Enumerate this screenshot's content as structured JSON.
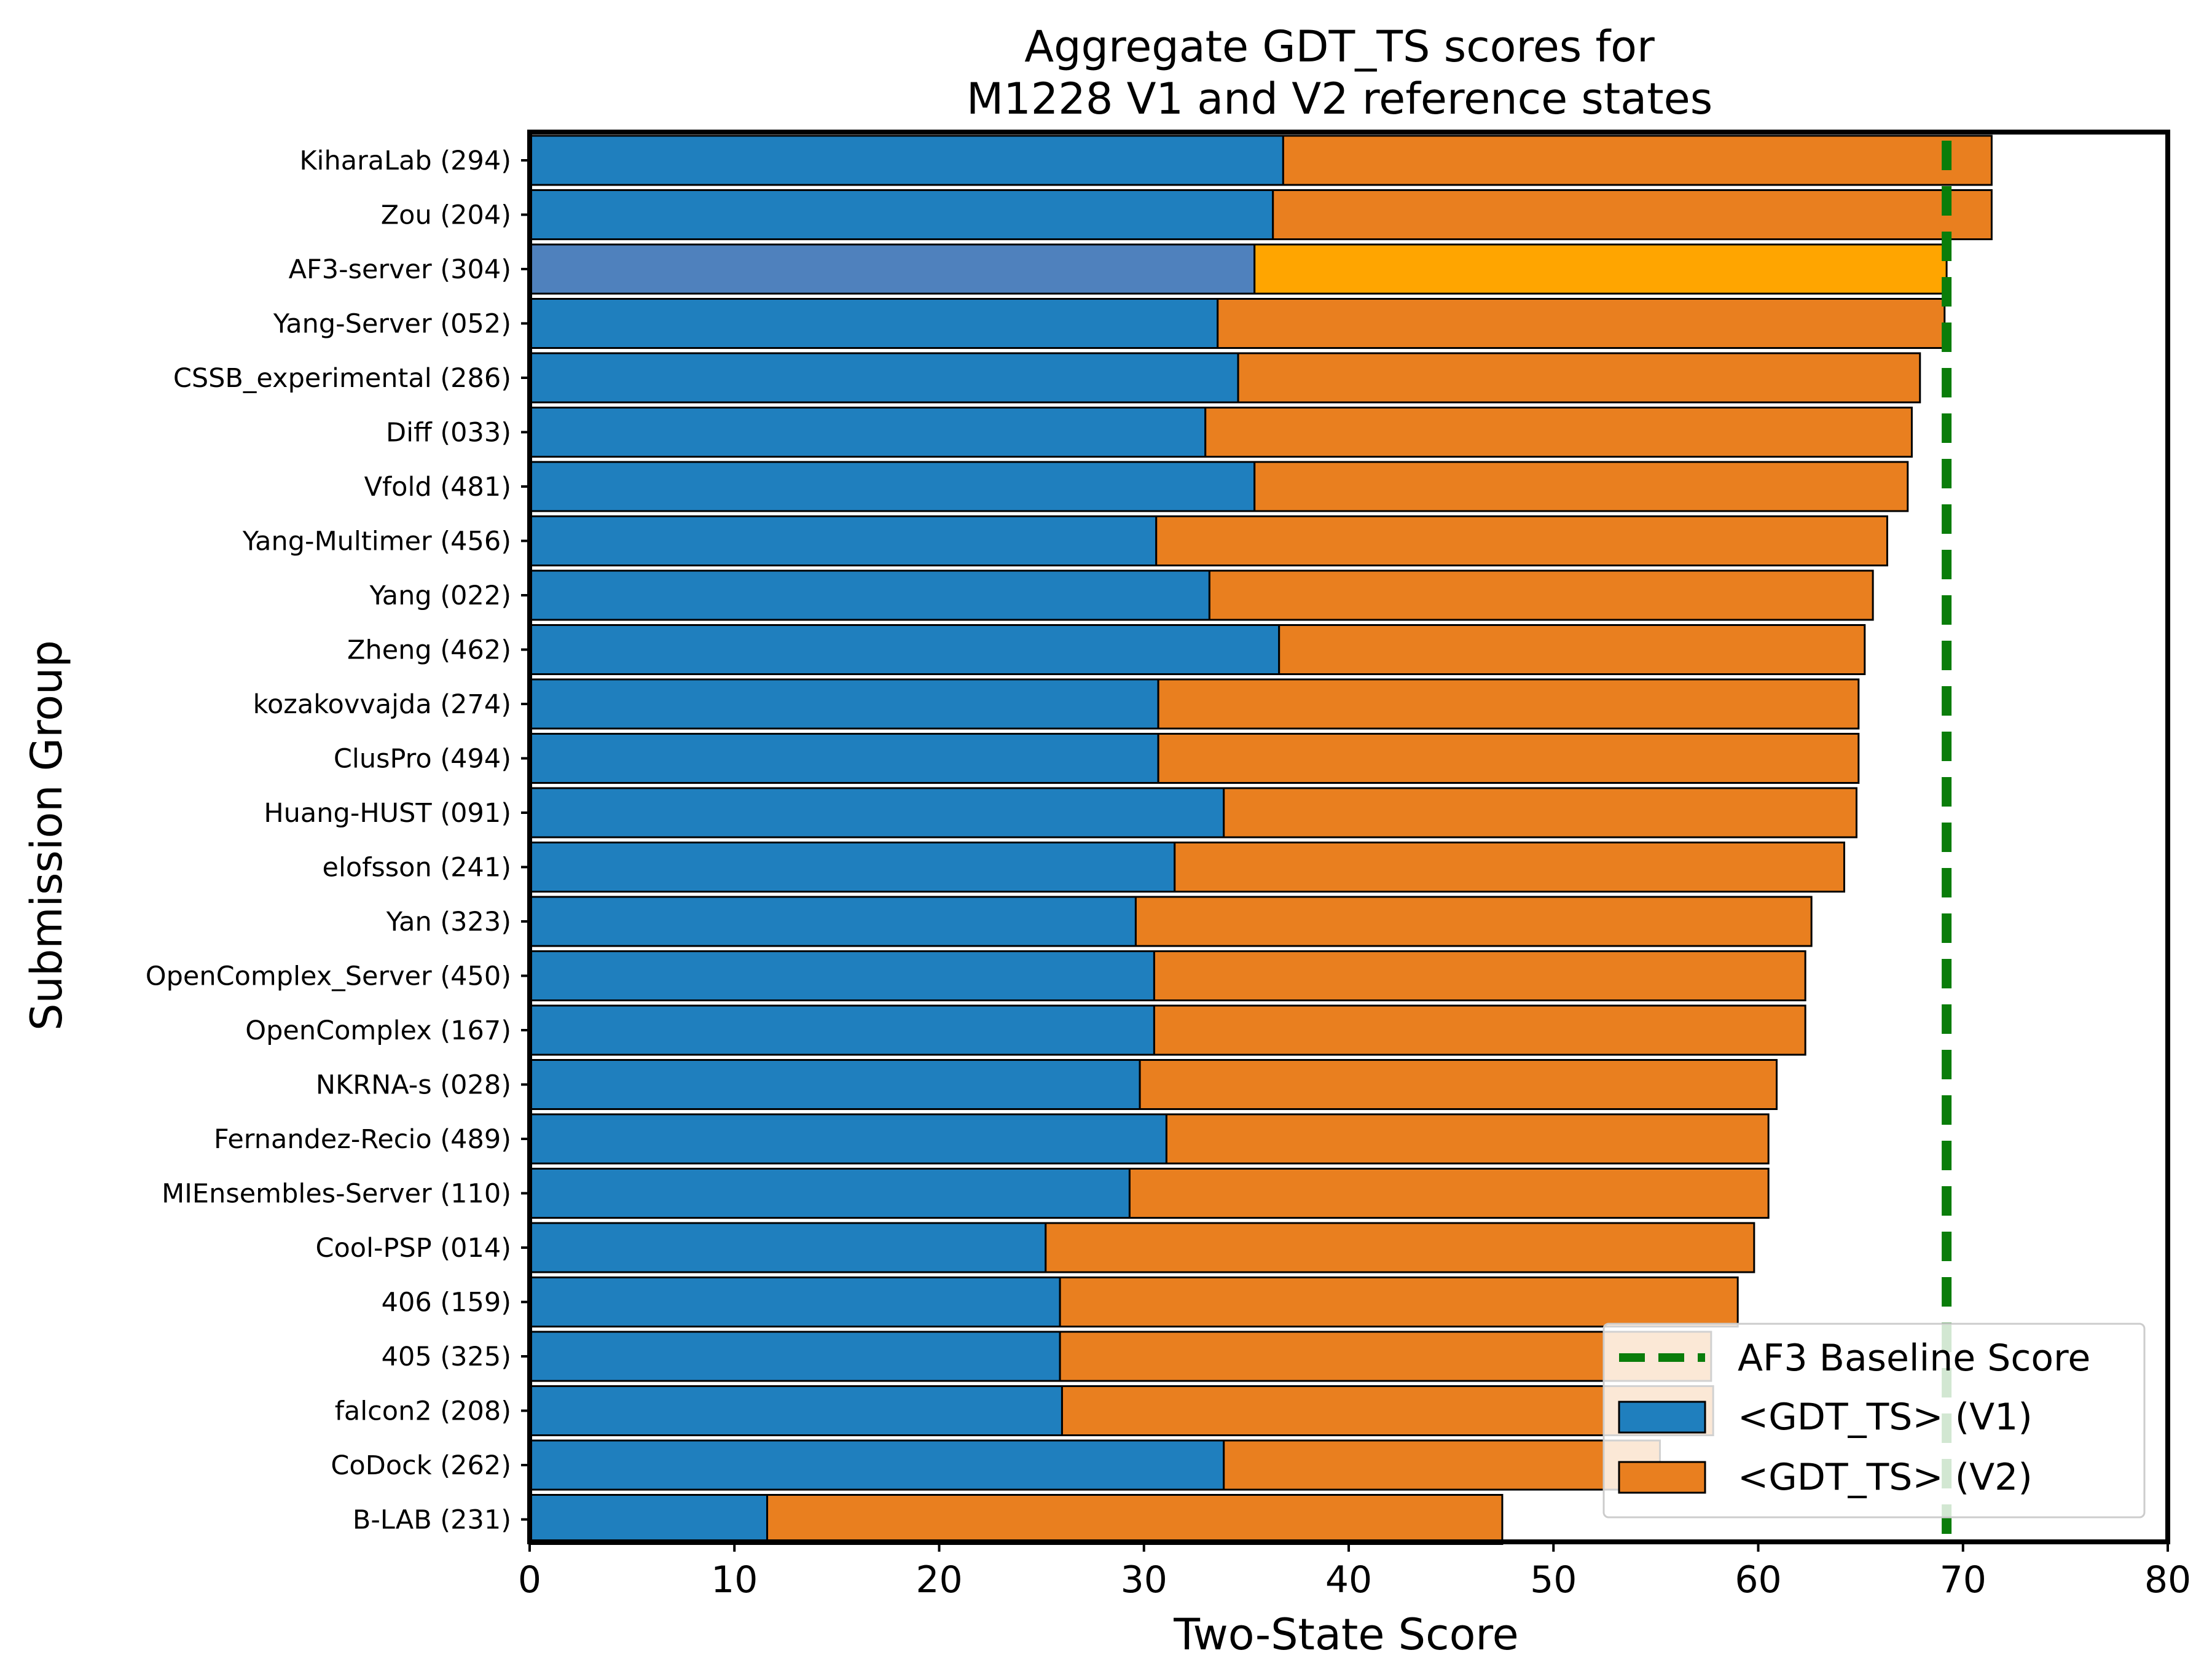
{
  "chart_data": {
    "type": "bar",
    "orientation": "horizontal",
    "stacked": true,
    "title": "Aggregate GDT_TS scores for\nM1228 V1 and V2 reference states",
    "xlabel": "Two-State Score",
    "ylabel": "Submission Group",
    "xlim": [
      0,
      80
    ],
    "xticks": [
      0,
      10,
      20,
      30,
      40,
      50,
      60,
      70,
      80
    ],
    "grid": false,
    "legend_position": "bottom-right",
    "categories": [
      "KiharaLab (294)",
      "Zou (204)",
      "AF3-server (304)",
      "Yang-Server (052)",
      "CSSB_experimental (286)",
      "Diff (033)",
      "Vfold (481)",
      "Yang-Multimer (456)",
      "Yang (022)",
      "Zheng (462)",
      "kozakovvajda (274)",
      "ClusPro (494)",
      "Huang-HUST (091)",
      "elofsson (241)",
      "Yan (323)",
      "OpenComplex_Server (450)",
      "OpenComplex (167)",
      "NKRNA-s (028)",
      "Fernandez-Recio (489)",
      "MIEnsembles-Server (110)",
      "Cool-PSP (014)",
      "406 (159)",
      "405 (325)",
      "falcon2 (208)",
      "CoDock (262)",
      "B-LAB (231)"
    ],
    "series": [
      {
        "name": "<GDT_TS> (V1)",
        "color": "#1f7fbe",
        "values": [
          36.8,
          36.3,
          35.4,
          33.6,
          34.6,
          33.0,
          35.4,
          30.6,
          33.2,
          36.6,
          30.7,
          30.7,
          33.9,
          31.5,
          29.6,
          30.5,
          30.5,
          29.8,
          31.1,
          29.3,
          25.2,
          25.9,
          25.9,
          26.0,
          33.9,
          11.6
        ]
      },
      {
        "name": "<GDT_TS> (V2)",
        "color": "#e97f1f",
        "values": [
          34.6,
          35.1,
          33.8,
          35.5,
          33.3,
          34.5,
          31.9,
          35.7,
          32.4,
          28.6,
          34.2,
          34.2,
          30.9,
          32.7,
          33.0,
          31.8,
          31.8,
          31.1,
          29.4,
          31.2,
          34.6,
          33.1,
          31.8,
          31.8,
          21.3,
          35.9
        ]
      }
    ],
    "highlight": {
      "category": "AF3-server (304)",
      "v1_color": "#4f81bd",
      "v2_color": "#ffa500"
    },
    "baseline": {
      "name": "AF3 Baseline Score",
      "value": 69.2,
      "color": "#0a7d0a"
    }
  }
}
